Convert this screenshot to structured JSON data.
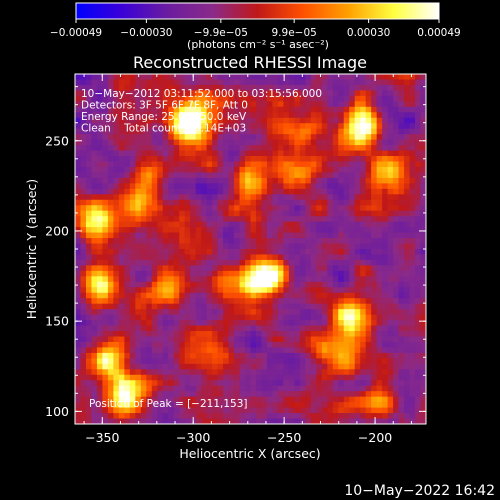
{
  "chart_data": {
    "type": "heatmap",
    "title": "Reconstructed RHESSI Image",
    "xlabel": "Heliocentric X (arcsec)",
    "ylabel": "Heliocentric Y (arcsec)",
    "xlim": [
      -365,
      -172
    ],
    "ylim": [
      93,
      287
    ],
    "x_ticks": [
      -350,
      -300,
      -250,
      -200
    ],
    "x_tick_labels": [
      "−350",
      "−300",
      "−250",
      "−200"
    ],
    "y_ticks": [
      100,
      150,
      200,
      250
    ],
    "y_tick_labels": [
      "100",
      "150",
      "200",
      "250"
    ],
    "colorbar": {
      "range": [
        -0.00049,
        0.00049
      ],
      "ticks": [
        -0.00049,
        -0.0003,
        -9.9e-05,
        9.9e-05,
        0.0003,
        0.00049
      ],
      "tick_labels": [
        "−0.00049",
        "−0.00030",
        "−9.9e−05",
        "9.9e−05",
        "0.00030",
        "0.00049"
      ],
      "units_label": "(photons cm⁻² s⁻¹ asec⁻²)",
      "colormap": [
        "#0000ff",
        "#3a00d8",
        "#6a1ca0",
        "#8a2a8a",
        "#c01818",
        "#ff5000",
        "#ffa000",
        "#ffff40",
        "#ffffff"
      ]
    },
    "grid": false,
    "annotations": [
      "10−May−2012 03:11:52.000 to 03:15:56.000",
      "Detectors: 3F 5F 6F 7F 8F, Att 0",
      "Energy Range: 25.0 − 50.0 keV",
      "Clean    Total counts: 6.14E+03"
    ],
    "peak_label": "Position of Peak = [−211,153]",
    "peak_position": [
      -211,
      153
    ],
    "bright_sources": [
      {
        "x": -352,
        "y": 170,
        "value": 0.00046
      },
      {
        "x": -345,
        "y": 128,
        "value": 0.00045
      },
      {
        "x": -337,
        "y": 108,
        "value": 0.00042
      },
      {
        "x": -354,
        "y": 205,
        "value": 0.00038
      },
      {
        "x": -330,
        "y": 214,
        "value": 0.00036
      },
      {
        "x": -303,
        "y": 254,
        "value": 0.00042
      },
      {
        "x": -300,
        "y": 265,
        "value": 0.00034
      },
      {
        "x": -258,
        "y": 175,
        "value": 0.00049
      },
      {
        "x": -267,
        "y": 169,
        "value": 0.00036
      },
      {
        "x": -211,
        "y": 153,
        "value": 0.00049
      },
      {
        "x": -215,
        "y": 128,
        "value": 0.00034
      },
      {
        "x": -230,
        "y": 135,
        "value": 0.00028
      },
      {
        "x": -207,
        "y": 258,
        "value": 0.00047
      },
      {
        "x": -243,
        "y": 231,
        "value": 0.00031
      },
      {
        "x": -270,
        "y": 228,
        "value": 0.00024
      },
      {
        "x": -284,
        "y": 169,
        "value": 0.00026
      },
      {
        "x": -313,
        "y": 170,
        "value": 0.00024
      },
      {
        "x": -195,
        "y": 232,
        "value": 0.00026
      },
      {
        "x": -322,
        "y": 232,
        "value": 0.00022
      },
      {
        "x": -290,
        "y": 140,
        "value": 0.0002
      },
      {
        "x": -200,
        "y": 106,
        "value": 0.00016
      },
      {
        "x": -242,
        "y": 256,
        "value": 0.00025
      }
    ]
  },
  "footer": {
    "timestamp": "10−May−2022 16:42"
  }
}
